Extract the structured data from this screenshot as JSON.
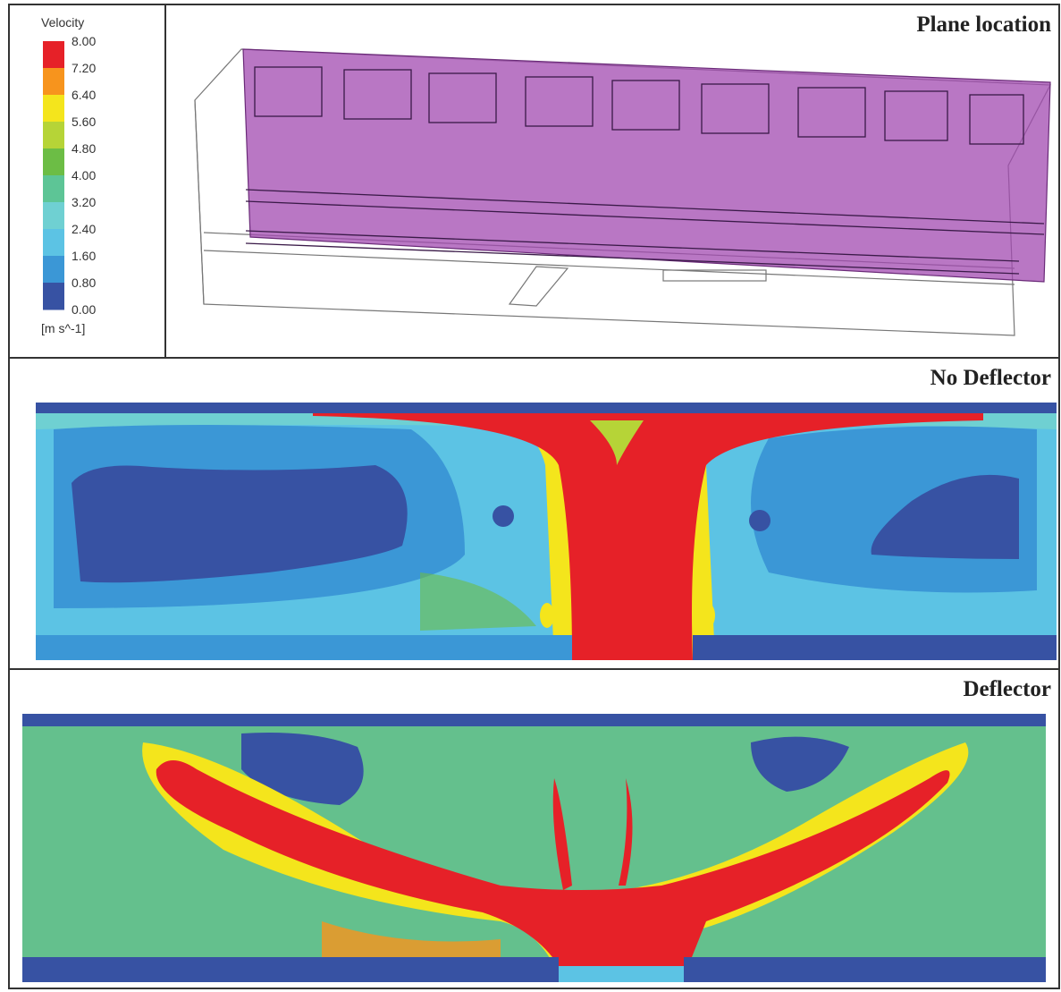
{
  "legend": {
    "title": "Velocity",
    "ticks": [
      "8.00",
      "7.20",
      "6.40",
      "5.60",
      "4.80",
      "4.00",
      "3.20",
      "2.40",
      "1.60",
      "0.80",
      "0.00"
    ],
    "colors": [
      "#e62128",
      "#f7941d",
      "#f4e51c",
      "#b6d437",
      "#6cbd45",
      "#5dc596",
      "#6fd0d2",
      "#5cc3e4",
      "#3b97d6",
      "#3752a3"
    ],
    "unit": "[m s^-1]"
  },
  "panels": [
    {
      "title": "Plane location"
    },
    {
      "title": "No Deflector"
    },
    {
      "title": "Deflector"
    }
  ]
}
